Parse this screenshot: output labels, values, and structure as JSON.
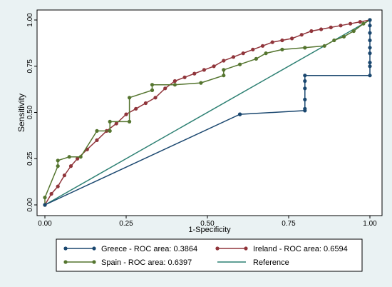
{
  "chart_data": {
    "type": "line",
    "title": "",
    "xlabel": "1-Specificity",
    "ylabel": "Sensitivity",
    "xlim": [
      0,
      1
    ],
    "ylim": [
      0,
      1
    ],
    "x_ticks": [
      "0.00",
      "0.25",
      "0.50",
      "0.75",
      "1.00"
    ],
    "y_ticks": [
      "0.00",
      "0.25",
      "0.50",
      "0.75",
      "1.00"
    ],
    "grid": false,
    "legend_position": "bottom",
    "series": [
      {
        "name": "Greece - ROC area: 0.3864",
        "color": "#1a476f",
        "markers": true,
        "x": [
          0,
          0.6,
          0.6,
          0.8,
          0.8,
          0.8,
          0.8,
          0.8,
          0.8,
          1.0,
          1.0,
          1.0,
          1.0,
          1.0,
          1.0,
          1.0,
          1.0,
          1.0
        ],
        "y": [
          0,
          0.49,
          0.49,
          0.51,
          0.52,
          0.57,
          0.63,
          0.67,
          0.7,
          0.7,
          0.75,
          0.77,
          0.82,
          0.85,
          0.89,
          0.93,
          0.97,
          1.0
        ]
      },
      {
        "name": "Ireland - ROC area: 0.6594",
        "color": "#90353b",
        "markers": true,
        "x": [
          0,
          0.02,
          0.04,
          0.06,
          0.08,
          0.1,
          0.13,
          0.16,
          0.19,
          0.22,
          0.25,
          0.28,
          0.31,
          0.34,
          0.37,
          0.4,
          0.43,
          0.46,
          0.49,
          0.52,
          0.55,
          0.58,
          0.61,
          0.64,
          0.67,
          0.7,
          0.73,
          0.76,
          0.79,
          0.82,
          0.85,
          0.88,
          0.91,
          0.94,
          0.97,
          1.0
        ],
        "y": [
          0,
          0.06,
          0.1,
          0.16,
          0.21,
          0.25,
          0.3,
          0.35,
          0.4,
          0.44,
          0.49,
          0.52,
          0.55,
          0.58,
          0.63,
          0.67,
          0.69,
          0.71,
          0.73,
          0.75,
          0.78,
          0.8,
          0.82,
          0.84,
          0.86,
          0.88,
          0.89,
          0.9,
          0.92,
          0.94,
          0.95,
          0.96,
          0.97,
          0.98,
          0.99,
          1.0
        ]
      },
      {
        "name": "Spain - ROC area: 0.6397",
        "color": "#55752f",
        "markers": true,
        "x": [
          0,
          0.0,
          0.04,
          0.04,
          0.075,
          0.11,
          0.16,
          0.2,
          0.2,
          0.26,
          0.26,
          0.33,
          0.33,
          0.4,
          0.48,
          0.55,
          0.55,
          0.6,
          0.65,
          0.68,
          0.73,
          0.8,
          0.8,
          0.86,
          0.89,
          0.92,
          0.95,
          0.95,
          0.98,
          1.0
        ],
        "y": [
          0,
          0.04,
          0.21,
          0.24,
          0.26,
          0.26,
          0.4,
          0.4,
          0.45,
          0.45,
          0.58,
          0.62,
          0.65,
          0.65,
          0.66,
          0.7,
          0.73,
          0.76,
          0.79,
          0.82,
          0.84,
          0.85,
          0.85,
          0.86,
          0.89,
          0.91,
          0.94,
          0.94,
          0.98,
          1.0
        ]
      },
      {
        "name": "Reference",
        "color": "#2d8073",
        "markers": false,
        "x": [
          0,
          1
        ],
        "y": [
          0,
          1
        ]
      }
    ]
  }
}
